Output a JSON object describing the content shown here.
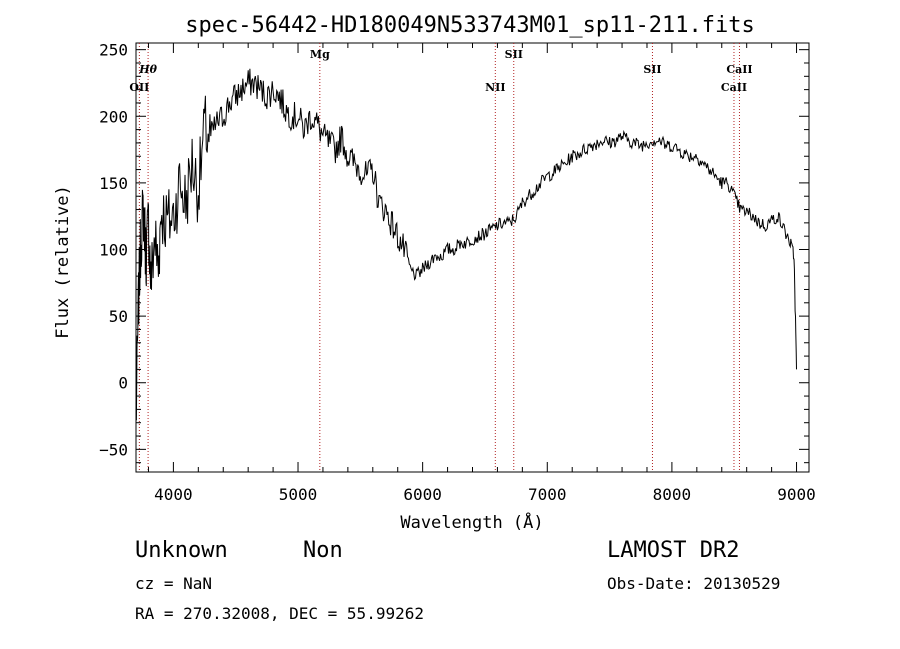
{
  "chart_data": {
    "type": "line",
    "title": "spec-56442-HD180049N533743M01_sp11-211.fits",
    "xlabel": "Wavelength (Å)",
    "ylabel": "Flux (relative)",
    "xlim": [
      3700,
      9100
    ],
    "ylim": [
      -67,
      255
    ],
    "xticks": [
      4000,
      5000,
      6000,
      7000,
      8000,
      9000
    ],
    "yticks": [
      -50,
      0,
      50,
      100,
      150,
      200,
      250
    ],
    "grid": false,
    "series": [
      {
        "x": [
          3700,
          3720,
          3740,
          3760,
          3780,
          3800,
          3820,
          3850,
          3880,
          3900,
          3950,
          4000,
          4050,
          4100,
          4150,
          4200,
          4250,
          4300,
          4350,
          4400,
          4450,
          4500,
          4550,
          4600,
          4650,
          4700,
          4750,
          4800,
          4850,
          4900,
          4950,
          5000,
          5050,
          5100,
          5150,
          5200,
          5250,
          5300,
          5350,
          5400,
          5450,
          5500,
          5550,
          5600,
          5650,
          5700,
          5750,
          5800,
          5850,
          5900,
          5950,
          6000,
          6050,
          6100,
          6150,
          6200,
          6250,
          6300,
          6350,
          6400,
          6450,
          6500,
          6550,
          6600,
          6650,
          6700,
          6750,
          6800,
          6850,
          6900,
          6950,
          7000,
          7050,
          7100,
          7150,
          7200,
          7250,
          7300,
          7350,
          7400,
          7450,
          7500,
          7550,
          7600,
          7650,
          7700,
          7750,
          7800,
          7850,
          7900,
          7950,
          8000,
          8050,
          8100,
          8150,
          8200,
          8250,
          8300,
          8350,
          8400,
          8450,
          8500,
          8550,
          8600,
          8650,
          8700,
          8750,
          8800,
          8850,
          8900,
          8950,
          8980,
          9000
        ],
        "values": [
          -30,
          60,
          110,
          130,
          95,
          120,
          75,
          110,
          85,
          130,
          120,
          125,
          150,
          135,
          165,
          145,
          190,
          185,
          195,
          200,
          210,
          215,
          220,
          225,
          225,
          220,
          215,
          220,
          215,
          205,
          200,
          200,
          190,
          200,
          195,
          185,
          180,
          175,
          185,
          170,
          165,
          160,
          155,
          160,
          135,
          130,
          120,
          110,
          100,
          85,
          80,
          85,
          90,
          95,
          95,
          100,
          100,
          105,
          105,
          108,
          110,
          112,
          115,
          118,
          120,
          120,
          125,
          135,
          140,
          145,
          150,
          155,
          158,
          162,
          165,
          170,
          172,
          175,
          178,
          180,
          182,
          180,
          182,
          185,
          182,
          180,
          178,
          180,
          182,
          182,
          178,
          178,
          175,
          172,
          170,
          170,
          165,
          160,
          155,
          150,
          150,
          140,
          130,
          128,
          125,
          120,
          118,
          122,
          125,
          115,
          105,
          95,
          10
        ]
      }
    ],
    "annotations": [
      {
        "label": "Hθ",
        "x": 3797
      },
      {
        "label": "OII",
        "x": 3727
      },
      {
        "label": "Mg",
        "x": 5175
      },
      {
        "label": "NII",
        "x": 6583
      },
      {
        "label": "SII",
        "x": 6731
      },
      {
        "label": "SII",
        "x": 7844
      },
      {
        "label": "CaII",
        "x": 8542
      },
      {
        "label": "CaII",
        "x": 8498
      }
    ]
  },
  "info": {
    "object_class": "Unknown",
    "subclass": "Non",
    "survey": "LAMOST DR2",
    "cz": "cz = NaN",
    "obs_date": "Obs-Date: 20130529",
    "coords": "RA = 270.32008, DEC =  55.99262"
  }
}
